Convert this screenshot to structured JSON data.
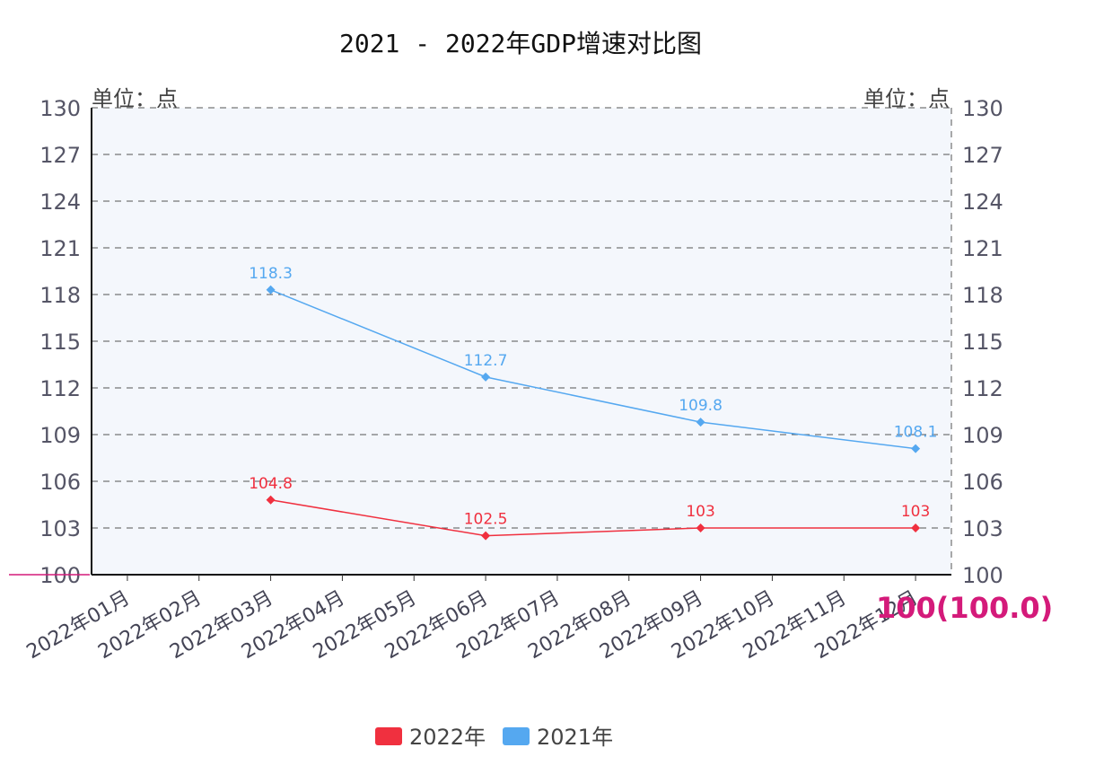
{
  "chart_data": {
    "type": "line",
    "title": "2021 - 2022年GDP增速对比图",
    "unit_left": "单位：点",
    "unit_right": "单位：点",
    "categories": [
      "2022年01月",
      "2022年02月",
      "2022年03月",
      "2022年04月",
      "2022年05月",
      "2022年06月",
      "2022年07月",
      "2022年08月",
      "2022年09月",
      "2022年10月",
      "2022年11月",
      "2022年12月"
    ],
    "ylim": [
      100,
      130
    ],
    "yticks": [
      100,
      103,
      106,
      109,
      112,
      115,
      118,
      121,
      124,
      127,
      130
    ],
    "grid": true,
    "legend_position": "bottom",
    "series": [
      {
        "name": "2022年",
        "color": "#f0303f",
        "values": [
          null,
          null,
          104.8,
          null,
          null,
          102.5,
          null,
          null,
          103,
          null,
          null,
          103
        ],
        "labels": [
          null,
          null,
          "104.8",
          null,
          null,
          "102.5",
          null,
          null,
          "103",
          null,
          null,
          "103"
        ]
      },
      {
        "name": "2021年",
        "color": "#55a8f0",
        "values": [
          null,
          null,
          118.3,
          null,
          null,
          112.7,
          null,
          null,
          109.8,
          null,
          null,
          108.1
        ],
        "labels": [
          null,
          null,
          "118.3",
          null,
          null,
          "112.7",
          null,
          null,
          "109.8",
          null,
          null,
          "108.1"
        ]
      }
    ],
    "annotation": "100(100.0)",
    "annotation_color": "#d41a7a"
  }
}
